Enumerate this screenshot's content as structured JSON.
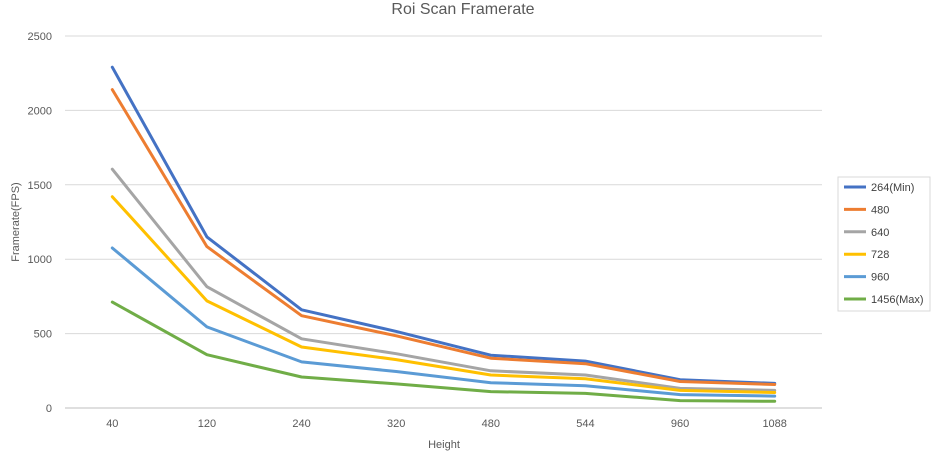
{
  "chart_data": {
    "type": "line",
    "title": "Roi Scan Framerate",
    "xlabel": "Height",
    "ylabel": "Framerate(FPS)",
    "categories": [
      "40",
      "120",
      "240",
      "320",
      "480",
      "544",
      "960",
      "1088"
    ],
    "ylim": [
      0,
      2500
    ],
    "yticks": [
      "0",
      "500",
      "1000",
      "1500",
      "2000",
      "2500"
    ],
    "grid": true,
    "legend_position": "right",
    "series": [
      {
        "name": "264(Min)",
        "color": "#4472C4",
        "values": [
          2290,
          1150,
          660,
          515,
          355,
          315,
          190,
          165
        ]
      },
      {
        "name": "480",
        "color": "#ED7D31",
        "values": [
          2140,
          1085,
          620,
          485,
          335,
          298,
          178,
          158
        ]
      },
      {
        "name": "640",
        "color": "#A5A5A5",
        "values": [
          1605,
          815,
          465,
          365,
          250,
          222,
          132,
          118
        ]
      },
      {
        "name": "728",
        "color": "#FFC000",
        "values": [
          1420,
          720,
          410,
          325,
          222,
          196,
          118,
          104
        ]
      },
      {
        "name": "960",
        "color": "#5B9BD5",
        "values": [
          1075,
          545,
          310,
          245,
          170,
          150,
          90,
          80
        ]
      },
      {
        "name": "1456(Max)",
        "color": "#70AD47",
        "values": [
          712,
          358,
          208,
          162,
          110,
          98,
          50,
          45
        ]
      }
    ]
  }
}
